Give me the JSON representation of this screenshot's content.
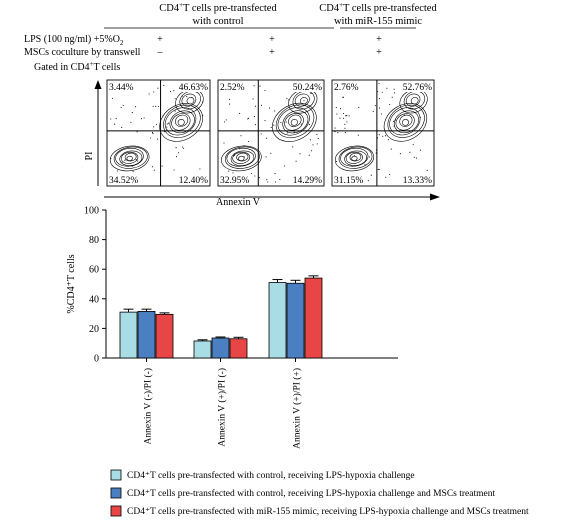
{
  "header": {
    "group1_title_line1": "CD4",
    "group1_title_sup": "+",
    "group1_title_line1_rest": "T cells pre-transfected",
    "group1_title_line2": "with control",
    "group2_title_line1": "CD4",
    "group2_title_sup": "+",
    "group2_title_line1_rest": "T cells pre-transfected",
    "group2_title_line2": "with miR-155 mimic",
    "conditions": [
      {
        "label": "LPS (100 ng/ml) +5%O",
        "label_sub": "2",
        "marks": [
          "+",
          "+",
          "+"
        ]
      },
      {
        "label": "MSCs coculture by transwell",
        "label_sub": "",
        "marks": [
          "–",
          "+",
          "+"
        ]
      }
    ],
    "gated_label": "Gated in CD4",
    "gated_sup": "+",
    "gated_rest": "T cells"
  },
  "flow": {
    "y_axis_label": "PI",
    "x_axis_label": "Annexin V",
    "panels": [
      {
        "ul": "3.44%",
        "ur": "46.63%",
        "ll": "34.52%",
        "lr": "12.40%"
      },
      {
        "ul": "2.52%",
        "ur": "50.24%",
        "ll": "32.95%",
        "lr": "14.29%"
      },
      {
        "ul": "2.76%",
        "ur": "52.76%",
        "ll": "31.15%",
        "lr": "13.33%"
      }
    ]
  },
  "chart_data": {
    "type": "bar",
    "categories": [
      "Annexin V (-)/PI (-)",
      "Annexin V (+)/PI (-)",
      "Annexin V (+)/PI (+)"
    ],
    "series": [
      {
        "name": "CD4⁺T cells pre-transfected with control, receiving LPS-hypoxia challenge",
        "color": "#a8dde6",
        "values": [
          31,
          11.5,
          51
        ],
        "errors": [
          2,
          0.8,
          2
        ]
      },
      {
        "name": "CD4⁺T cells pre-transfected with control, receiving LPS-hypoxia challenge and MSCs treatment",
        "color": "#4a7fc1",
        "values": [
          31.5,
          13.5,
          50.5
        ],
        "errors": [
          1.5,
          0.7,
          2
        ]
      },
      {
        "name": "CD4⁺T cells pre-transfected with miR-155 mimic, receiving LPS-hypoxia challenge and MSCs treatment",
        "color": "#e84646",
        "values": [
          29.5,
          13,
          54
        ],
        "errors": [
          1,
          1,
          1.5
        ]
      }
    ],
    "ylabel": "%CD4⁺T cells",
    "ylim": [
      0,
      100
    ],
    "yticks": [
      0,
      20,
      40,
      60,
      80,
      100
    ],
    "grid": false,
    "legend_position": "bottom"
  }
}
